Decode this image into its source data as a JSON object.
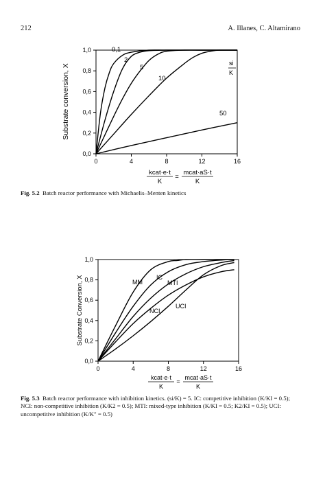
{
  "header": {
    "page_number": "212",
    "authors": "A. Illanes, C. Altamirano"
  },
  "figure_52": {
    "caption_label": "Fig. 5.2",
    "caption_text": "Batch reactor performance with Michaelis–Menten kinetics",
    "ylabel": "Substrate conversion, X",
    "xlabel_left": "kcat·e·t",
    "xlabel_right": "mcat·aS·t",
    "xlabel_den": "K",
    "legend_title_top": "si",
    "legend_title_bottom": "K",
    "x_ticks": [
      "0",
      "4",
      "8",
      "12",
      "16"
    ],
    "y_ticks": [
      "0,0",
      "0,2",
      "0,4",
      "0,6",
      "0,8",
      "1,0"
    ],
    "curve_labels": [
      "0,1",
      "2",
      "5",
      "10",
      "50"
    ]
  },
  "figure_53": {
    "caption_label": "Fig. 5.3",
    "caption_text": "Batch reactor performance with inhibition kinetics. (si/K) = 5. IC: competitive inhibition (K/KI = 0.5); NCI: non-competitive inhibition (K/K2 = 0.5); MTI: mixed-type inhibition (K/KI = 0.5; K2/KI = 0.5); UCI: uncompetitive inhibition (K/K″ = 0.5)",
    "ylabel": "Substrate Conversion, X",
    "xlabel_left": "kcat·e·t",
    "xlabel_right": "mcat·aS·t",
    "xlabel_den": "K",
    "x_ticks": [
      "0",
      "4",
      "8",
      "12",
      "16"
    ],
    "y_ticks": [
      "0,0",
      "0,2",
      "0,4",
      "0,6",
      "0,8",
      "1,0"
    ],
    "curve_labels": [
      "MM",
      "IC",
      "MTI",
      "NCI",
      "UCI"
    ]
  },
  "chart_data": [
    {
      "type": "line",
      "title": "",
      "xlabel": "kcat·e·t / K = mcat·aS·t / K",
      "ylabel": "Substrate conversion, X",
      "xlim": [
        0,
        16
      ],
      "ylim": [
        0,
        1
      ],
      "legend": "si/K",
      "series": [
        {
          "name": "0,1",
          "x": [
            0,
            0.5,
            1,
            1.5,
            2,
            3,
            4,
            6,
            8,
            12,
            16
          ],
          "y": [
            0,
            0.39,
            0.63,
            0.78,
            0.87,
            0.95,
            0.98,
            1.0,
            1.0,
            1.0,
            1.0
          ]
        },
        {
          "name": "2",
          "x": [
            0,
            1,
            2,
            3,
            4,
            5,
            6,
            8,
            12,
            16
          ],
          "y": [
            0,
            0.32,
            0.6,
            0.82,
            0.94,
            0.98,
            0.995,
            1.0,
            1.0,
            1.0
          ]
        },
        {
          "name": "5",
          "x": [
            0,
            1,
            2,
            3,
            4,
            5,
            6,
            7,
            8,
            10,
            12,
            16
          ],
          "y": [
            0,
            0.18,
            0.36,
            0.53,
            0.68,
            0.8,
            0.9,
            0.96,
            0.99,
            1.0,
            1.0,
            1.0
          ]
        },
        {
          "name": "10",
          "x": [
            0,
            2,
            4,
            6,
            8,
            10,
            11,
            12,
            13,
            14,
            16
          ],
          "y": [
            0,
            0.19,
            0.38,
            0.56,
            0.73,
            0.87,
            0.93,
            0.97,
            0.99,
            1.0,
            1.0
          ]
        },
        {
          "name": "50",
          "x": [
            0,
            4,
            8,
            12,
            16
          ],
          "y": [
            0,
            0.08,
            0.155,
            0.23,
            0.3
          ]
        }
      ]
    },
    {
      "type": "line",
      "title": "",
      "xlabel": "kcat·e·t / K = mcat·aS·t / K",
      "ylabel": "Substrate Conversion, X",
      "xlim": [
        0,
        16
      ],
      "ylim": [
        0,
        1
      ],
      "series": [
        {
          "name": "MM",
          "x": [
            0,
            2,
            4,
            6,
            8,
            9,
            10,
            12,
            15.5
          ],
          "y": [
            0,
            0.35,
            0.68,
            0.9,
            0.98,
            0.99,
            1.0,
            1.0,
            1.0
          ]
        },
        {
          "name": "IC",
          "x": [
            0,
            2,
            4,
            6,
            8,
            10,
            12,
            14,
            15.5
          ],
          "y": [
            0,
            0.28,
            0.54,
            0.75,
            0.88,
            0.95,
            0.98,
            0.995,
            1.0
          ]
        },
        {
          "name": "MTI",
          "x": [
            0,
            2,
            4,
            6,
            8,
            10,
            12,
            14,
            15.5
          ],
          "y": [
            0,
            0.22,
            0.44,
            0.62,
            0.76,
            0.86,
            0.93,
            0.97,
            0.99
          ]
        },
        {
          "name": "NCI",
          "x": [
            0,
            2,
            4,
            6,
            8,
            10,
            12,
            14,
            15.5
          ],
          "y": [
            0,
            0.19,
            0.37,
            0.52,
            0.65,
            0.75,
            0.83,
            0.88,
            0.9
          ]
        },
        {
          "name": "UCI",
          "x": [
            0,
            2,
            4,
            6,
            8,
            10,
            12,
            14,
            15.5
          ],
          "y": [
            0,
            0.12,
            0.25,
            0.39,
            0.54,
            0.7,
            0.85,
            0.94,
            0.97
          ]
        }
      ]
    }
  ]
}
